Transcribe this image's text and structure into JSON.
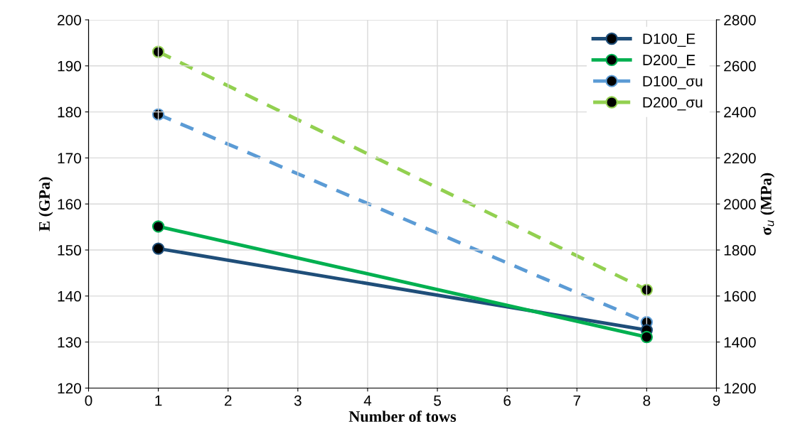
{
  "chart_data": {
    "type": "line",
    "xlabel": "Number of tows",
    "ylabel": "E (GPa)",
    "y2label": "σ$_{u}$ (MPa)",
    "x": [
      1,
      8
    ],
    "xlim": [
      0,
      9
    ],
    "xticks": [
      0,
      1,
      2,
      3,
      4,
      5,
      6,
      7,
      8,
      9
    ],
    "ylim": [
      120,
      200
    ],
    "yticks": [
      120,
      130,
      140,
      150,
      160,
      170,
      180,
      190,
      200
    ],
    "y2lim": [
      1200,
      2800
    ],
    "y2ticks": [
      1200,
      1400,
      1600,
      1800,
      2000,
      2200,
      2400,
      2600,
      2800
    ],
    "grid": true,
    "legend": "top right",
    "marker": "circle",
    "series": [
      {
        "name": "D100_E",
        "color": "#1f4e79",
        "values": [
          150.3,
          132.6
        ],
        "line_style": "solid"
      },
      {
        "name": "D200_E",
        "color": "#00b050",
        "values": [
          155.1,
          131.1
        ],
        "line_style": "solid"
      },
      {
        "name": "D100_σu",
        "color": "#5b9bd5",
        "values": [
          2389,
          1486
        ],
        "axis": "y2",
        "line_style": "dashed"
      },
      {
        "name": "D200_σu",
        "color": "#92d050",
        "values": [
          2661,
          1627
        ],
        "axis": "y2",
        "line_style": "dashed"
      }
    ]
  }
}
